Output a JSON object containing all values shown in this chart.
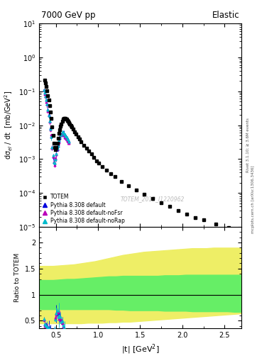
{
  "title_left": "7000 GeV pp",
  "title_right": "Elastic",
  "ylabel_main": "dσ$_{el}$ / dt  [mb/GeV$^{2}$]",
  "ylabel_ratio": "Ratio to TOTEM",
  "xlabel": "|t| [GeV$^{2}$]",
  "xlim": [
    0.3,
    2.7
  ],
  "ylim_main": [
    1e-05,
    10
  ],
  "ylim_ratio": [
    0.35,
    2.3
  ],
  "right_label1": "Rivet 3.1.10; ≥ 3.6M events",
  "right_label2": "mcplots.cern.ch [arXiv:1306.3436]",
  "watermark": "TOTEM_2012_I1220962",
  "legend_entries": [
    "TOTEM",
    "Pythia 8.308 default",
    "Pythia 8.308 default-noFsr",
    "Pythia 8.308 default-noRap"
  ],
  "totem_color": "black",
  "py_default_color": "#0000dd",
  "py_nofsr_color": "#bb00bb",
  "py_norap_color": "#00bbcc",
  "band_yellow": "#eeee66",
  "band_green": "#66ee66",
  "totem_t": [
    0.365,
    0.375,
    0.385,
    0.395,
    0.405,
    0.415,
    0.425,
    0.435,
    0.445,
    0.455,
    0.465,
    0.475,
    0.485,
    0.495,
    0.505,
    0.515,
    0.525,
    0.535,
    0.545,
    0.555,
    0.565,
    0.575,
    0.585,
    0.595,
    0.605,
    0.615,
    0.625,
    0.635,
    0.645,
    0.655,
    0.665,
    0.675,
    0.685,
    0.7,
    0.72,
    0.74,
    0.76,
    0.78,
    0.8,
    0.83,
    0.86,
    0.89,
    0.92,
    0.95,
    0.98,
    1.01,
    1.05,
    1.1,
    1.15,
    1.2,
    1.28,
    1.36,
    1.45,
    1.55,
    1.65,
    1.75,
    1.85,
    1.95,
    2.05,
    2.15,
    2.25,
    2.4,
    2.55,
    2.65
  ],
  "totem_y": [
    0.21,
    0.175,
    0.14,
    0.105,
    0.075,
    0.055,
    0.038,
    0.025,
    0.016,
    0.009,
    0.005,
    0.003,
    0.0022,
    0.0019,
    0.0022,
    0.003,
    0.0042,
    0.0058,
    0.0075,
    0.0092,
    0.011,
    0.013,
    0.015,
    0.016,
    0.016,
    0.016,
    0.015,
    0.014,
    0.013,
    0.012,
    0.011,
    0.01,
    0.0088,
    0.0078,
    0.0065,
    0.0055,
    0.0046,
    0.0039,
    0.0033,
    0.0026,
    0.0021,
    0.0017,
    0.0014,
    0.0011,
    0.0009,
    0.00075,
    0.0006,
    0.00048,
    0.00038,
    0.0003,
    0.00022,
    0.000165,
    0.000125,
    9e-05,
    6.8e-05,
    5.2e-05,
    4e-05,
    3.1e-05,
    2.4e-05,
    1.9e-05,
    1.6e-05,
    1.2e-05,
    9.5e-06,
    8.5e-06
  ],
  "mc_t": [
    0.355,
    0.365,
    0.375,
    0.385,
    0.395,
    0.405,
    0.415,
    0.425,
    0.435,
    0.445,
    0.455,
    0.465,
    0.475,
    0.485,
    0.495,
    0.505,
    0.515,
    0.525,
    0.535,
    0.545,
    0.555,
    0.565,
    0.575,
    0.585,
    0.595,
    0.605,
    0.615,
    0.625,
    0.635,
    0.645,
    0.655
  ],
  "mc_y_default": [
    0.11,
    0.09,
    0.072,
    0.056,
    0.041,
    0.029,
    0.02,
    0.013,
    0.008,
    0.0045,
    0.0022,
    0.0012,
    0.0008,
    0.00075,
    0.001,
    0.0014,
    0.0019,
    0.0027,
    0.0034,
    0.0042,
    0.005,
    0.0055,
    0.0058,
    0.0058,
    0.0056,
    0.0053,
    0.0049,
    0.0044,
    0.004,
    0.0036,
    0.0032
  ],
  "yellow_lo": [
    0.45,
    0.45,
    0.45,
    0.45,
    0.45,
    0.45,
    0.45,
    0.46,
    0.46,
    0.46,
    0.47,
    0.47,
    0.48,
    0.48,
    0.49,
    0.5,
    0.51,
    0.52,
    0.53,
    0.54,
    0.55,
    0.56,
    0.57,
    0.58,
    0.59,
    0.6,
    0.61,
    0.62,
    0.63,
    0.64
  ],
  "yellow_hi": [
    1.55,
    1.55,
    1.55,
    1.56,
    1.57,
    1.58,
    1.6,
    1.62,
    1.64,
    1.67,
    1.7,
    1.73,
    1.76,
    1.78,
    1.8,
    1.82,
    1.83,
    1.84,
    1.85,
    1.86,
    1.87,
    1.88,
    1.89,
    1.89,
    1.89,
    1.9,
    1.9,
    1.9,
    1.9,
    1.9
  ],
  "green_lo": [
    0.72,
    0.72,
    0.72,
    0.72,
    0.72,
    0.72,
    0.72,
    0.72,
    0.72,
    0.72,
    0.72,
    0.71,
    0.71,
    0.7,
    0.7,
    0.7,
    0.7,
    0.7,
    0.69,
    0.69,
    0.69,
    0.69,
    0.68,
    0.68,
    0.68,
    0.68,
    0.68,
    0.68,
    0.67,
    0.67
  ],
  "green_hi": [
    1.28,
    1.28,
    1.28,
    1.29,
    1.3,
    1.3,
    1.31,
    1.32,
    1.33,
    1.34,
    1.35,
    1.35,
    1.36,
    1.36,
    1.36,
    1.36,
    1.36,
    1.36,
    1.37,
    1.37,
    1.37,
    1.38,
    1.38,
    1.38,
    1.38,
    1.38,
    1.38,
    1.38,
    1.38,
    1.38
  ]
}
